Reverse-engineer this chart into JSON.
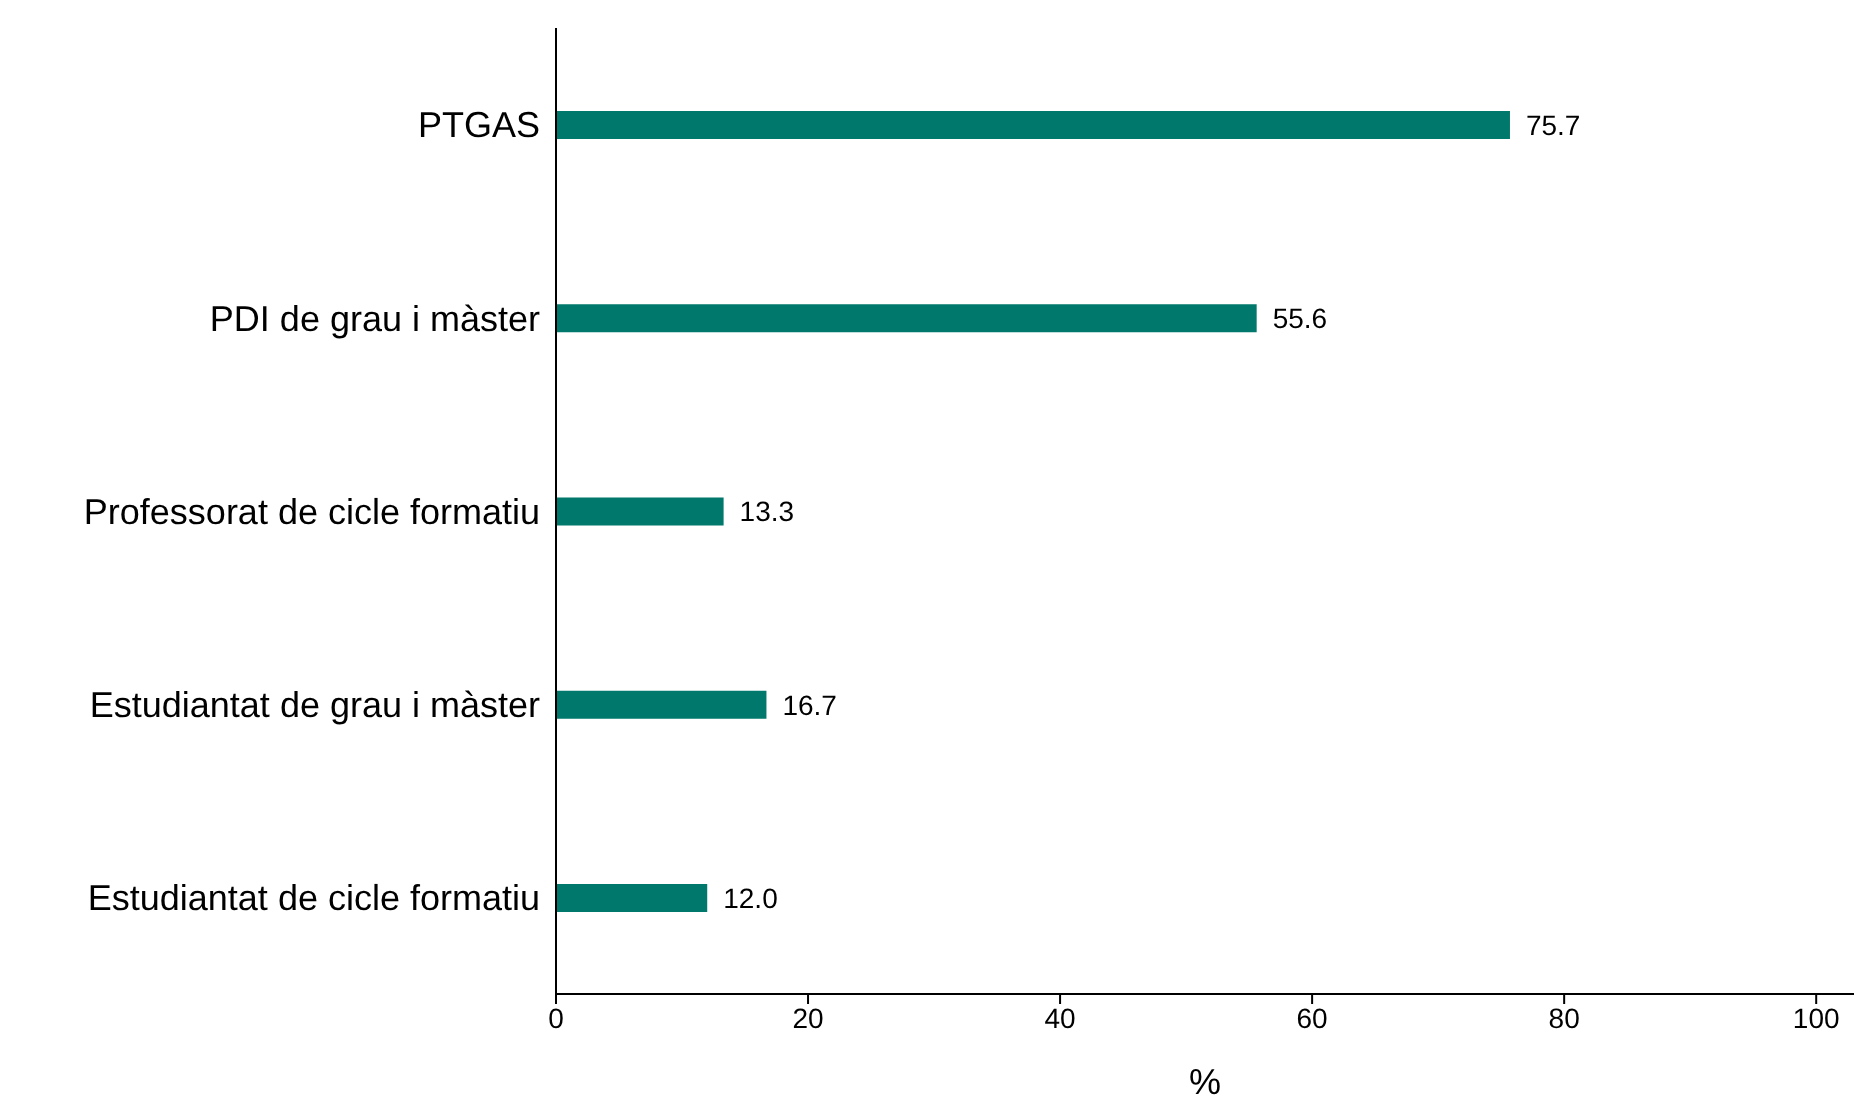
{
  "chart_data": {
    "type": "bar",
    "orientation": "horizontal",
    "xlabel": "%",
    "categories": [
      "PTGAS",
      "PDI de grau i màster",
      "Professorat de cicle formatiu",
      "Estudiantat de grau i màster",
      "Estudiantat de cicle formatiu"
    ],
    "values": [
      75.7,
      55.6,
      13.3,
      16.7,
      12.0
    ],
    "value_labels": [
      "75.7",
      "55.6",
      "13.3",
      "16.7",
      "12.0"
    ],
    "color": "#00786b",
    "xlim": [
      0,
      103
    ],
    "xticks": [
      0,
      20,
      40,
      60,
      80,
      100
    ],
    "grid": false,
    "legend": false
  }
}
